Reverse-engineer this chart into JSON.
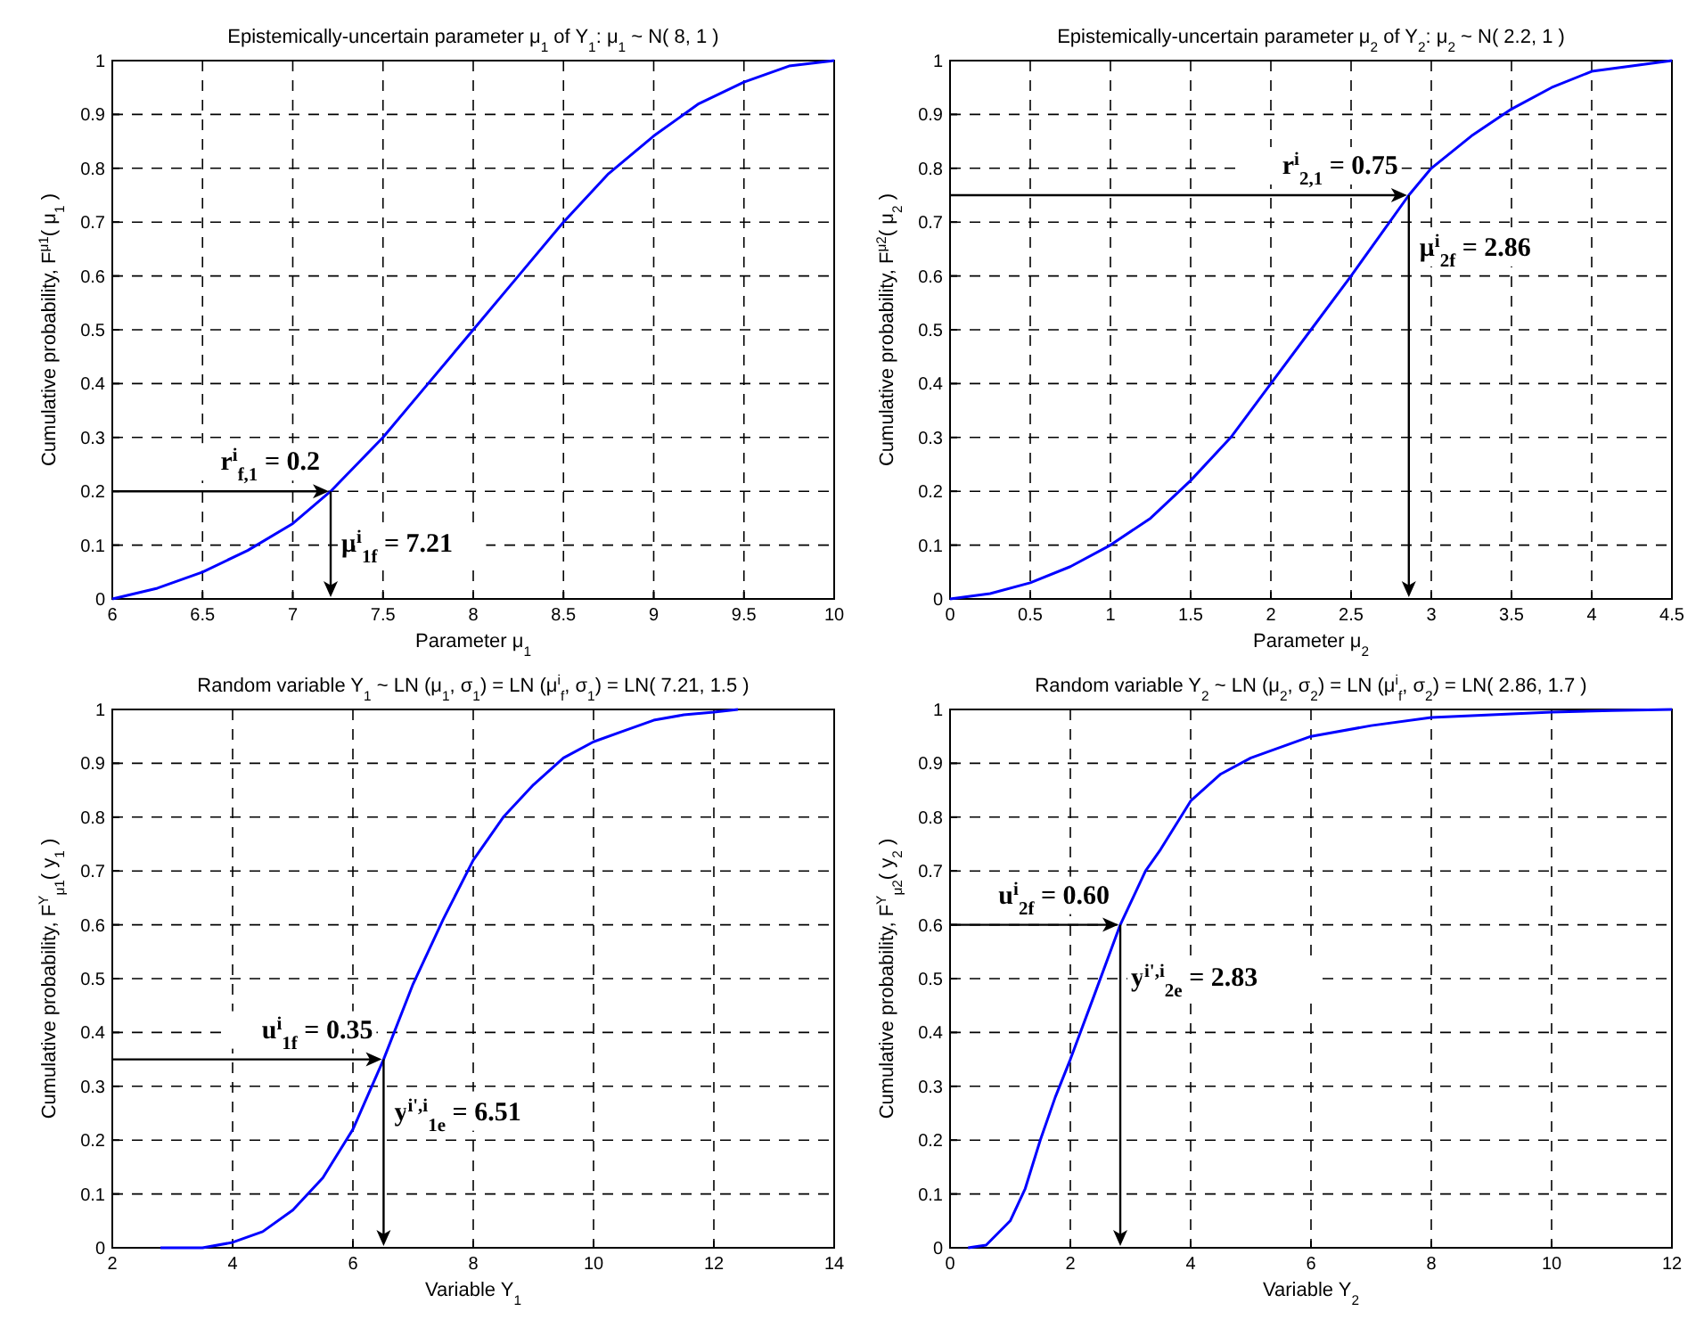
{
  "chart_data": [
    {
      "type": "line",
      "title": "Epistemically-uncertain parameter μ$_{1}$ of Y$_{1}$: μ$_{1}$ ~ N( 8, 1 )",
      "xlabel": "Parameter μ$_{1}$",
      "ylabel": "Cumulative probability, F$^{μ1}$( μ$_{1}$ )",
      "x": [
        6,
        6.25,
        6.5,
        6.75,
        7,
        7.21,
        7.5,
        7.75,
        8,
        8.25,
        8.5,
        8.75,
        9,
        9.25,
        9.5,
        9.75,
        10
      ],
      "series": [
        {
          "color": "#0000ff",
          "values": [
            0,
            0.02,
            0.05,
            0.09,
            0.14,
            0.2,
            0.3,
            0.4,
            0.5,
            0.6,
            0.7,
            0.79,
            0.86,
            0.92,
            0.96,
            0.99,
            1
          ]
        }
      ],
      "xlim": [
        6,
        10
      ],
      "ylim": [
        0,
        1
      ],
      "xticks": [
        6,
        6.5,
        7,
        7.5,
        8,
        8.5,
        9,
        9.5,
        10
      ],
      "yticks": [
        0,
        0.1,
        0.2,
        0.3,
        0.4,
        0.5,
        0.6,
        0.7,
        0.8,
        0.9,
        1
      ],
      "grid": true,
      "marker": "none",
      "line_style": "solid",
      "annotations": [
        {
          "text": "r$^{i}$$_{f,1}$ = 0.2",
          "x": 7.21,
          "y": 0.2
        },
        {
          "text": "μ$^{i}$$_{1f}$ = 7.21",
          "x": 7.21,
          "y": 0.2
        }
      ]
    },
    {
      "type": "line",
      "title": "Epistemically-uncertain parameter μ$_{2}$ of Y$_{2}$: μ$_{2}$ ~ N( 2.2, 1 )",
      "xlabel": "Parameter μ$_{2}$",
      "ylabel": "Cumulative probability, F$^{μ2}$( μ$_{2}$ )",
      "x": [
        0,
        0.25,
        0.5,
        0.75,
        1,
        1.25,
        1.5,
        1.75,
        2,
        2.25,
        2.5,
        2.86,
        3,
        3.25,
        3.5,
        3.75,
        4,
        4.25,
        4.5
      ],
      "series": [
        {
          "color": "#0000ff",
          "values": [
            0,
            0.01,
            0.03,
            0.06,
            0.1,
            0.15,
            0.22,
            0.3,
            0.4,
            0.5,
            0.6,
            0.75,
            0.8,
            0.86,
            0.91,
            0.95,
            0.98,
            0.99,
            1
          ]
        }
      ],
      "xlim": [
        0,
        4.5
      ],
      "ylim": [
        0,
        1
      ],
      "xticks": [
        0,
        0.5,
        1,
        1.5,
        2,
        2.5,
        3,
        3.5,
        4,
        4.5
      ],
      "yticks": [
        0,
        0.1,
        0.2,
        0.3,
        0.4,
        0.5,
        0.6,
        0.7,
        0.8,
        0.9,
        1
      ],
      "grid": true,
      "marker": "none",
      "line_style": "solid",
      "annotations": [
        {
          "text": "r$^{i}$$_{2,1}$ = 0.75",
          "x": 2.86,
          "y": 0.75
        },
        {
          "text": "μ$^{i}$$_{2f}$ = 2.86",
          "x": 2.86,
          "y": 0.75
        }
      ]
    },
    {
      "type": "line",
      "title": "Random variable Y$_{1}$ ~ LN (μ$_{1}$, σ$_{1}$) = LN (μ$^{i}$$_{f}$, σ$_{1}$) = LN( 7.21, 1.5 )",
      "xlabel": "Variable Y$_{1}$",
      "ylabel": "Cumulative probability, F$^{Y}$$_{μ1}$( y$_{1}$ )",
      "x": [
        2.8,
        3.5,
        4,
        4.5,
        5,
        5.5,
        6,
        6.51,
        7,
        7.5,
        8,
        8.5,
        9,
        9.5,
        10,
        10.5,
        11,
        11.5,
        12,
        12.4
      ],
      "series": [
        {
          "color": "#0000ff",
          "values": [
            0,
            0,
            0.01,
            0.03,
            0.07,
            0.13,
            0.22,
            0.35,
            0.49,
            0.61,
            0.72,
            0.8,
            0.86,
            0.91,
            0.94,
            0.96,
            0.98,
            0.99,
            0.995,
            1
          ]
        }
      ],
      "xlim": [
        2,
        14
      ],
      "ylim": [
        0,
        1
      ],
      "xticks": [
        2,
        4,
        6,
        8,
        10,
        12,
        14
      ],
      "yticks": [
        0,
        0.1,
        0.2,
        0.3,
        0.4,
        0.5,
        0.6,
        0.7,
        0.8,
        0.9,
        1
      ],
      "grid": true,
      "marker": "none",
      "line_style": "solid",
      "annotations": [
        {
          "text": "u$^{i}$$_{1f}$ = 0.35",
          "x": 6.51,
          "y": 0.35
        },
        {
          "text": "y$^{i',i}$$_{1e}$ = 6.51",
          "x": 6.51,
          "y": 0.35
        }
      ]
    },
    {
      "type": "line",
      "title": "Random variable Y$_{2}$ ~ LN (μ$_{2}$, σ$_{2}$) = LN (μ$^{i}$$_{f}$, σ$_{2}$) = LN( 2.86, 1.7 )",
      "xlabel": "Variable Y$_{2}$",
      "ylabel": "Cumulative probability, F$^{Y}$$_{μ2}$( y$_{2}$ )",
      "x": [
        0.3,
        0.6,
        1,
        1.25,
        1.5,
        1.75,
        2,
        2.4,
        2.83,
        3.25,
        3.5,
        4,
        4.5,
        5,
        6,
        7,
        8,
        9,
        10,
        11,
        12
      ],
      "series": [
        {
          "color": "#0000ff",
          "values": [
            0,
            0.005,
            0.05,
            0.11,
            0.2,
            0.28,
            0.35,
            0.47,
            0.6,
            0.7,
            0.74,
            0.83,
            0.88,
            0.91,
            0.95,
            0.97,
            0.985,
            0.99,
            0.995,
            0.998,
            1
          ]
        }
      ],
      "xlim": [
        0,
        12
      ],
      "ylim": [
        0,
        1
      ],
      "xticks": [
        0,
        2,
        4,
        6,
        8,
        10,
        12
      ],
      "yticks": [
        0,
        0.1,
        0.2,
        0.3,
        0.4,
        0.5,
        0.6,
        0.7,
        0.8,
        0.9,
        1
      ],
      "grid": true,
      "marker": "none",
      "line_style": "solid",
      "annotations": [
        {
          "text": "u$^{i}$$_{2f}$ = 0.60",
          "x": 2.83,
          "y": 0.6
        },
        {
          "text": "y$^{i',i}$$_{2e}$ = 2.83",
          "x": 2.83,
          "y": 0.6
        }
      ]
    }
  ]
}
